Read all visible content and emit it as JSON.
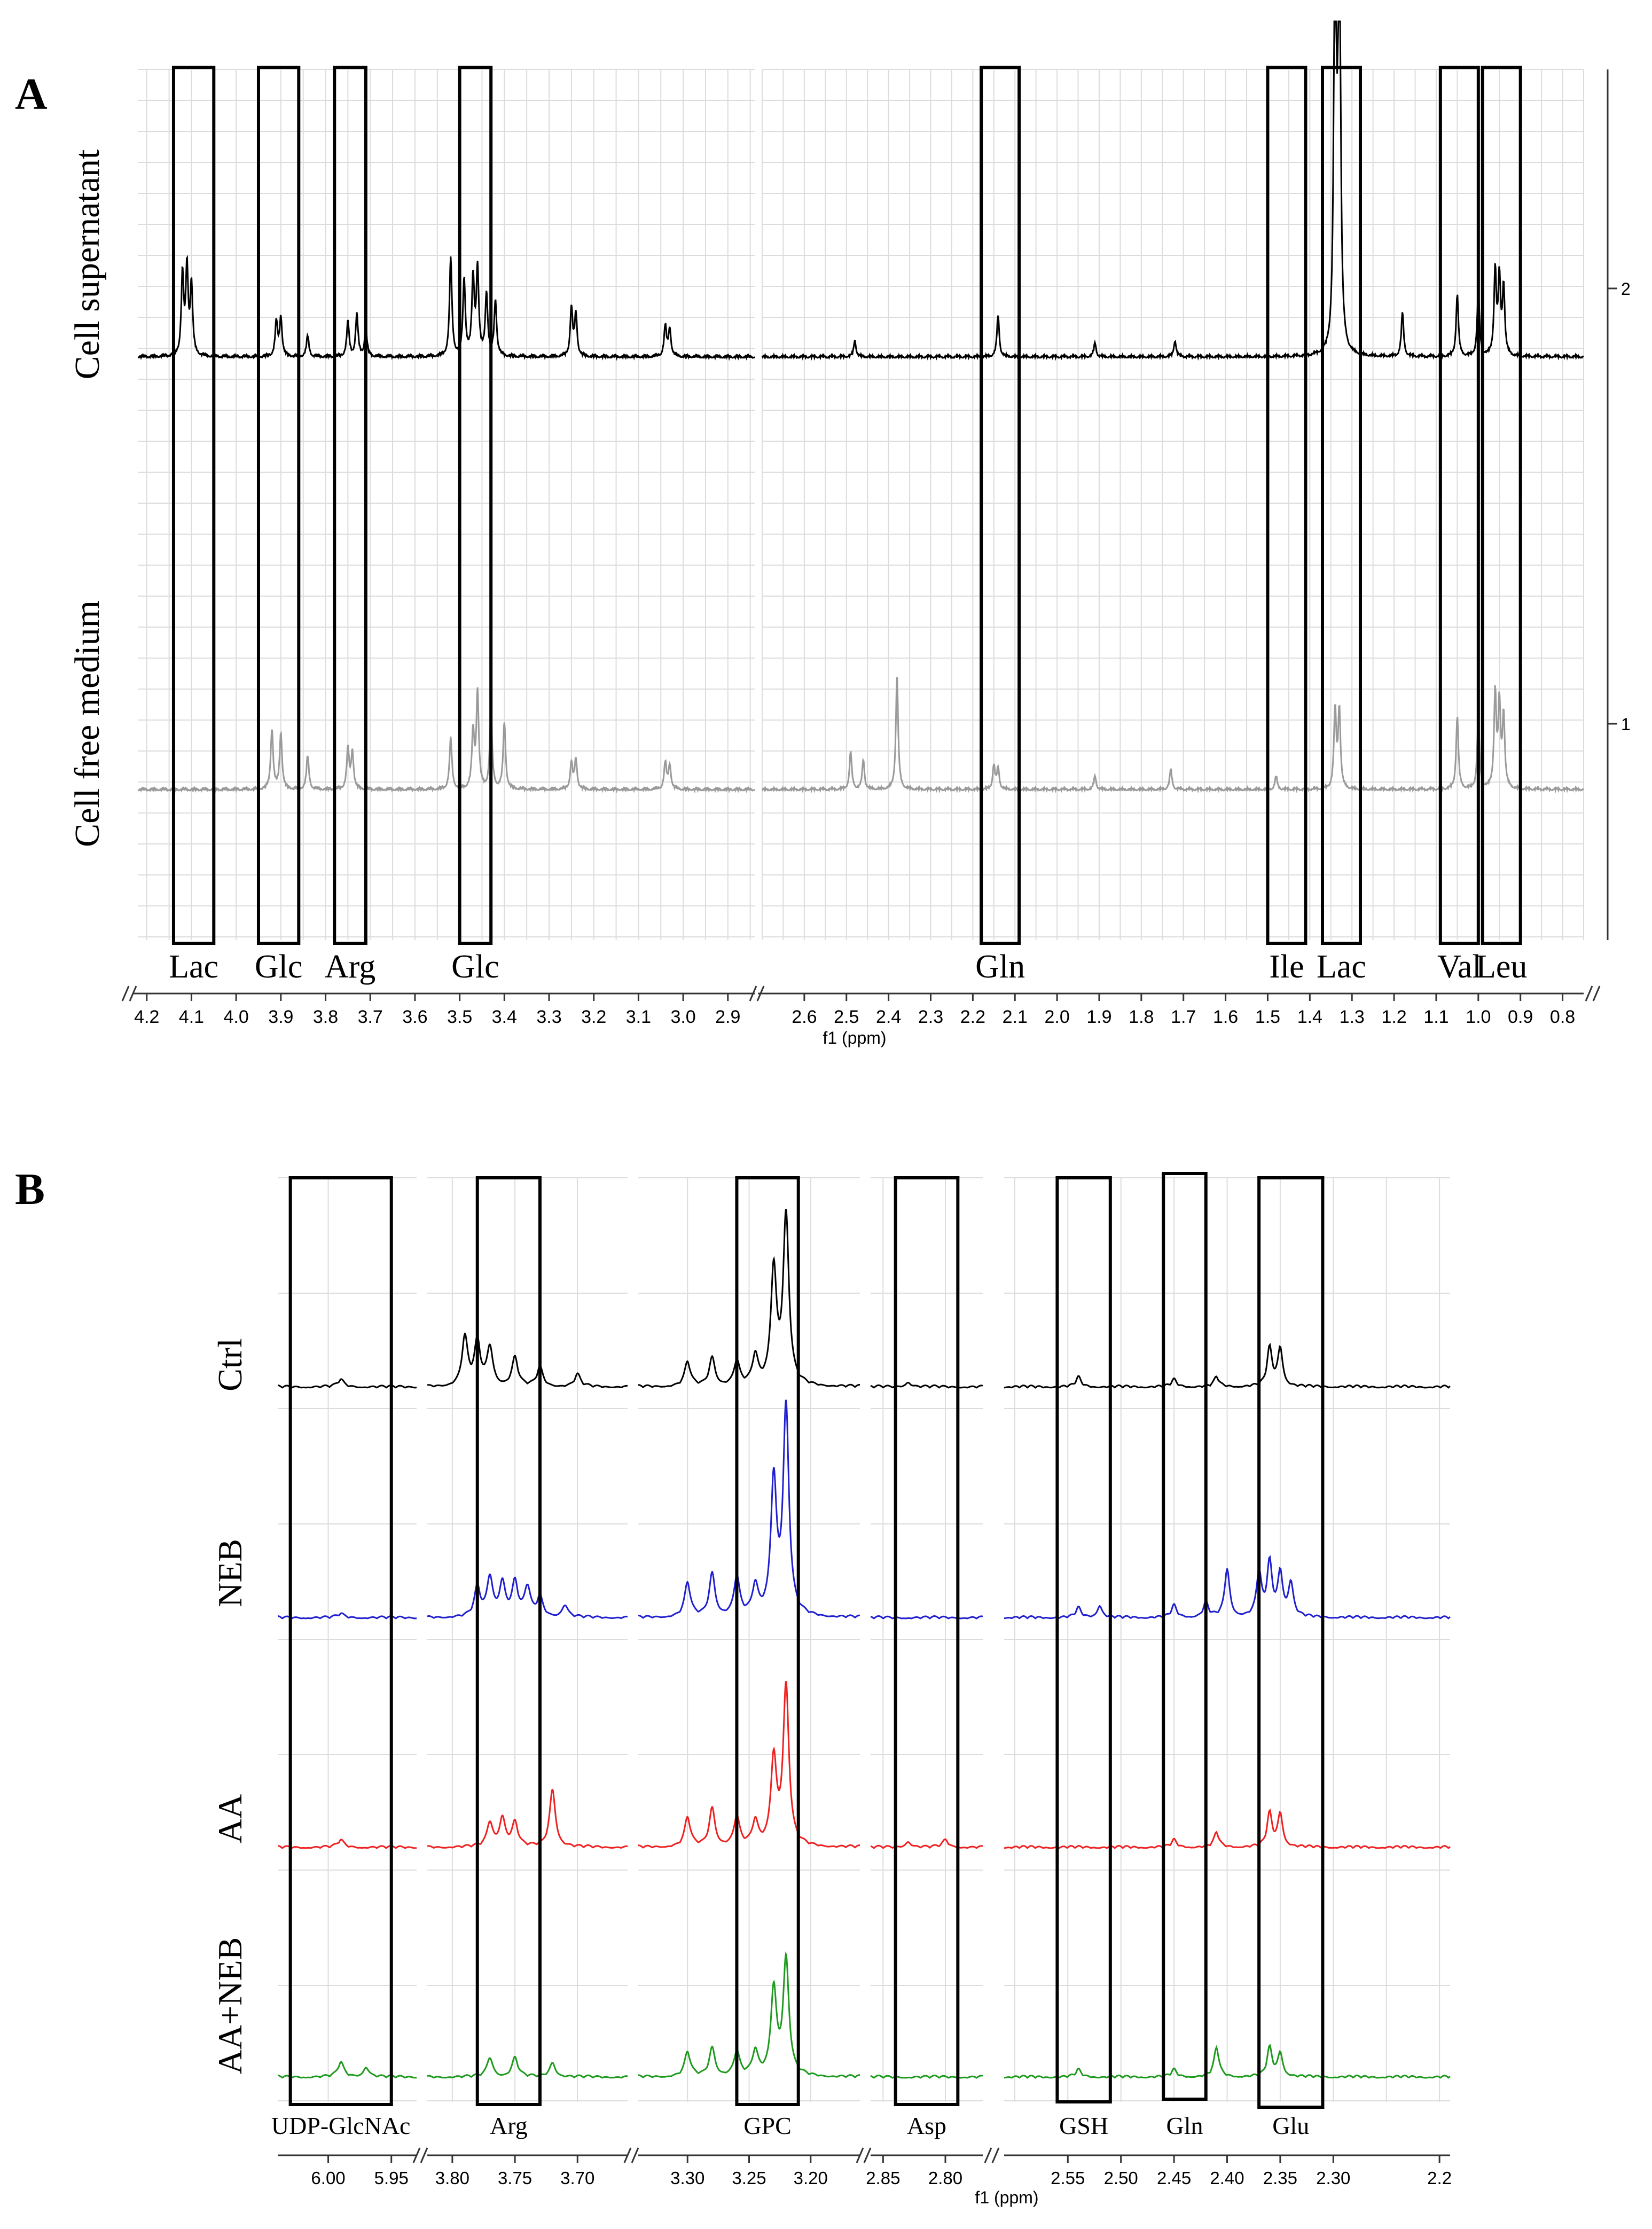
{
  "chart_data": [
    {
      "panel": "A",
      "type": "line",
      "title": "",
      "xlabel": "f1 (ppm)",
      "x_reversed": true,
      "xlim": [
        0.75,
        4.22
      ],
      "axis_break": [
        2.84,
        2.7
      ],
      "xticks": [
        4.2,
        4.1,
        4.0,
        3.9,
        3.8,
        3.7,
        3.6,
        3.5,
        3.4,
        3.3,
        3.2,
        3.1,
        3.0,
        2.9,
        2.6,
        2.5,
        2.4,
        2.3,
        2.2,
        2.1,
        2.0,
        1.9,
        1.8,
        1.7,
        1.6,
        1.5,
        1.4,
        1.3,
        1.2,
        1.1,
        1.0,
        0.9,
        0.8
      ],
      "xtick_labels": [
        "4.2",
        "4.1",
        "4.0",
        "3.9",
        "3.8",
        "3.7",
        "3.6",
        "3.5",
        "3.4",
        "3.3",
        "3.2",
        "3.1",
        "3.0",
        "2.9",
        "2.6",
        "2.5",
        "2.4",
        "2.3",
        "2.2",
        "2.1",
        "2.0",
        "1.9",
        "1.8",
        "1.7",
        "1.6",
        "1.5",
        "1.4",
        "1.3",
        "1.2",
        "1.1",
        "1.0",
        "0.9",
        "0.8"
      ],
      "right_axis_labels": [
        "2",
        "1"
      ],
      "series": [
        {
          "name": "Cell supernatant",
          "color": "#000000",
          "peaks": [
            [
              4.12,
              0.58
            ],
            [
              4.11,
              0.62
            ],
            [
              4.1,
              0.5
            ],
            [
              3.91,
              0.25
            ],
            [
              3.9,
              0.28
            ],
            [
              3.84,
              0.15
            ],
            [
              3.75,
              0.25
            ],
            [
              3.73,
              0.3
            ],
            [
              3.71,
              0.2
            ],
            [
              3.52,
              0.7
            ],
            [
              3.49,
              0.55
            ],
            [
              3.47,
              0.55
            ],
            [
              3.46,
              0.62
            ],
            [
              3.44,
              0.45
            ],
            [
              3.42,
              0.4
            ],
            [
              3.25,
              0.35
            ],
            [
              3.24,
              0.3
            ],
            [
              3.04,
              0.22
            ],
            [
              3.03,
              0.2
            ],
            [
              2.48,
              0.12
            ],
            [
              2.14,
              0.3
            ],
            [
              1.91,
              0.1
            ],
            [
              1.72,
              0.12
            ],
            [
              1.34,
              3.5
            ],
            [
              1.33,
              3.5
            ],
            [
              1.18,
              0.32
            ],
            [
              1.05,
              0.45
            ],
            [
              1.0,
              0.48
            ],
            [
              0.96,
              0.62
            ],
            [
              0.95,
              0.55
            ],
            [
              0.94,
              0.5
            ]
          ]
        },
        {
          "name": "Cell free medium",
          "color": "#9a9a9a",
          "peaks": [
            [
              3.92,
              0.45
            ],
            [
              3.9,
              0.42
            ],
            [
              3.84,
              0.25
            ],
            [
              3.75,
              0.3
            ],
            [
              3.74,
              0.28
            ],
            [
              3.52,
              0.38
            ],
            [
              3.47,
              0.42
            ],
            [
              3.46,
              0.72
            ],
            [
              3.43,
              0.58
            ],
            [
              3.4,
              0.5
            ],
            [
              3.25,
              0.2
            ],
            [
              3.24,
              0.22
            ],
            [
              3.04,
              0.2
            ],
            [
              3.03,
              0.18
            ],
            [
              2.49,
              0.28
            ],
            [
              2.46,
              0.22
            ],
            [
              2.38,
              0.85
            ],
            [
              2.15,
              0.18
            ],
            [
              2.14,
              0.16
            ],
            [
              1.91,
              0.1
            ],
            [
              1.73,
              0.15
            ],
            [
              1.48,
              0.1
            ],
            [
              1.34,
              0.6
            ],
            [
              1.33,
              0.6
            ],
            [
              1.05,
              0.55
            ],
            [
              1.0,
              0.55
            ],
            [
              0.96,
              0.72
            ],
            [
              0.95,
              0.62
            ],
            [
              0.94,
              0.55
            ]
          ]
        }
      ],
      "regions": [
        {
          "label": "Lac",
          "from": 4.14,
          "to": 4.05
        },
        {
          "label": "Glc",
          "from": 3.95,
          "to": 3.86
        },
        {
          "label": "Arg",
          "from": 3.78,
          "to": 3.71
        },
        {
          "label": "Glc",
          "from": 3.5,
          "to": 3.43
        },
        {
          "label": "Gln",
          "from": 2.18,
          "to": 2.09
        },
        {
          "label": "Ile",
          "from": 1.5,
          "to": 1.41
        },
        {
          "label": "Lac",
          "from": 1.37,
          "to": 1.28
        },
        {
          "label": "Val",
          "from": 1.09,
          "to": 1.0
        },
        {
          "label": "Leu",
          "from": 0.99,
          "to": 0.9
        }
      ]
    },
    {
      "panel": "B",
      "type": "line",
      "title": "",
      "xlabel": "f1 (ppm)",
      "x_reversed": true,
      "segments": [
        [
          6.04,
          5.93
        ],
        [
          3.82,
          3.66
        ],
        [
          3.34,
          3.16
        ],
        [
          2.86,
          2.77
        ],
        [
          2.61,
          2.19
        ]
      ],
      "xticks": [
        6.0,
        5.95,
        3.8,
        3.75,
        3.7,
        3.3,
        3.25,
        3.2,
        2.85,
        2.8,
        2.55,
        2.5,
        2.45,
        2.4,
        2.35,
        2.3,
        2.2
      ],
      "xtick_labels": [
        "6.00",
        "5.95",
        "3.80",
        "3.75",
        "3.70",
        "3.30",
        "3.25",
        "3.20",
        "2.85",
        "2.80",
        "2.55",
        "2.50",
        "2.45",
        "2.40",
        "2.35",
        "2.30",
        "2.2"
      ],
      "series": [
        {
          "name": "Ctrl",
          "color": "#000000",
          "peaks": [
            [
              5.99,
              0.15
            ],
            [
              3.79,
              1.0
            ],
            [
              3.78,
              0.9
            ],
            [
              3.77,
              0.8
            ],
            [
              3.75,
              0.6
            ],
            [
              3.73,
              0.4
            ],
            [
              3.7,
              0.25
            ],
            [
              3.3,
              0.5
            ],
            [
              3.28,
              0.6
            ],
            [
              3.26,
              0.5
            ],
            [
              3.245,
              0.6
            ],
            [
              3.23,
              2.4
            ],
            [
              3.22,
              3.5
            ],
            [
              2.83,
              0.1
            ],
            [
              2.54,
              0.2
            ],
            [
              2.45,
              0.15
            ],
            [
              2.41,
              0.2
            ],
            [
              2.36,
              0.8
            ],
            [
              2.35,
              0.8
            ]
          ]
        },
        {
          "name": "NEB",
          "color": "#1f1fcf",
          "peaks": [
            [
              5.99,
              0.08
            ],
            [
              3.78,
              0.6
            ],
            [
              3.77,
              0.8
            ],
            [
              3.76,
              0.7
            ],
            [
              3.75,
              0.7
            ],
            [
              3.74,
              0.6
            ],
            [
              3.73,
              0.4
            ],
            [
              3.71,
              0.25
            ],
            [
              3.3,
              0.7
            ],
            [
              3.28,
              0.9
            ],
            [
              3.26,
              0.8
            ],
            [
              3.245,
              0.6
            ],
            [
              3.23,
              2.8
            ],
            [
              3.22,
              4.3
            ],
            [
              2.54,
              0.2
            ],
            [
              2.52,
              0.25
            ],
            [
              2.45,
              0.25
            ],
            [
              2.42,
              0.3
            ],
            [
              2.4,
              1.0
            ],
            [
              2.37,
              0.9
            ],
            [
              2.36,
              1.1
            ],
            [
              2.35,
              0.9
            ],
            [
              2.34,
              0.7
            ]
          ]
        },
        {
          "name": "AA",
          "color": "#ef2020",
          "peaks": [
            [
              5.99,
              0.15
            ],
            [
              3.77,
              0.5
            ],
            [
              3.76,
              0.6
            ],
            [
              3.75,
              0.5
            ],
            [
              3.72,
              1.2
            ],
            [
              3.3,
              0.6
            ],
            [
              3.28,
              0.8
            ],
            [
              3.26,
              0.6
            ],
            [
              3.245,
              0.5
            ],
            [
              3.23,
              1.8
            ],
            [
              3.22,
              3.3
            ],
            [
              2.83,
              0.12
            ],
            [
              2.8,
              0.15
            ],
            [
              2.45,
              0.15
            ],
            [
              2.41,
              0.3
            ],
            [
              2.36,
              0.7
            ],
            [
              2.35,
              0.7
            ]
          ]
        },
        {
          "name": "AA+NEB",
          "color": "#1e9a1e",
          "peaks": [
            [
              5.99,
              0.3
            ],
            [
              5.97,
              0.2
            ],
            [
              3.77,
              0.4
            ],
            [
              3.75,
              0.4
            ],
            [
              3.72,
              0.3
            ],
            [
              3.3,
              0.5
            ],
            [
              3.28,
              0.6
            ],
            [
              3.26,
              0.5
            ],
            [
              3.245,
              0.5
            ],
            [
              3.23,
              1.8
            ],
            [
              3.22,
              2.4
            ],
            [
              2.54,
              0.15
            ],
            [
              2.45,
              0.15
            ],
            [
              2.41,
              0.6
            ],
            [
              2.36,
              0.6
            ],
            [
              2.35,
              0.5
            ]
          ]
        }
      ],
      "regions": [
        {
          "label": "UDP-GlcNAc",
          "from": 6.03,
          "to": 5.95
        },
        {
          "label": "Arg",
          "from": 3.78,
          "to": 3.73
        },
        {
          "label": "GPC",
          "from": 3.26,
          "to": 3.21
        },
        {
          "label": "Asp",
          "from": 2.84,
          "to": 2.79
        },
        {
          "label": "GSH",
          "from": 2.56,
          "to": 2.51
        },
        {
          "label": "Gln",
          "from": 2.46,
          "to": 2.42
        },
        {
          "label": "Glu",
          "from": 2.37,
          "to": 2.31
        }
      ]
    }
  ],
  "labels": {
    "panel_a": "A",
    "panel_b": "B"
  }
}
